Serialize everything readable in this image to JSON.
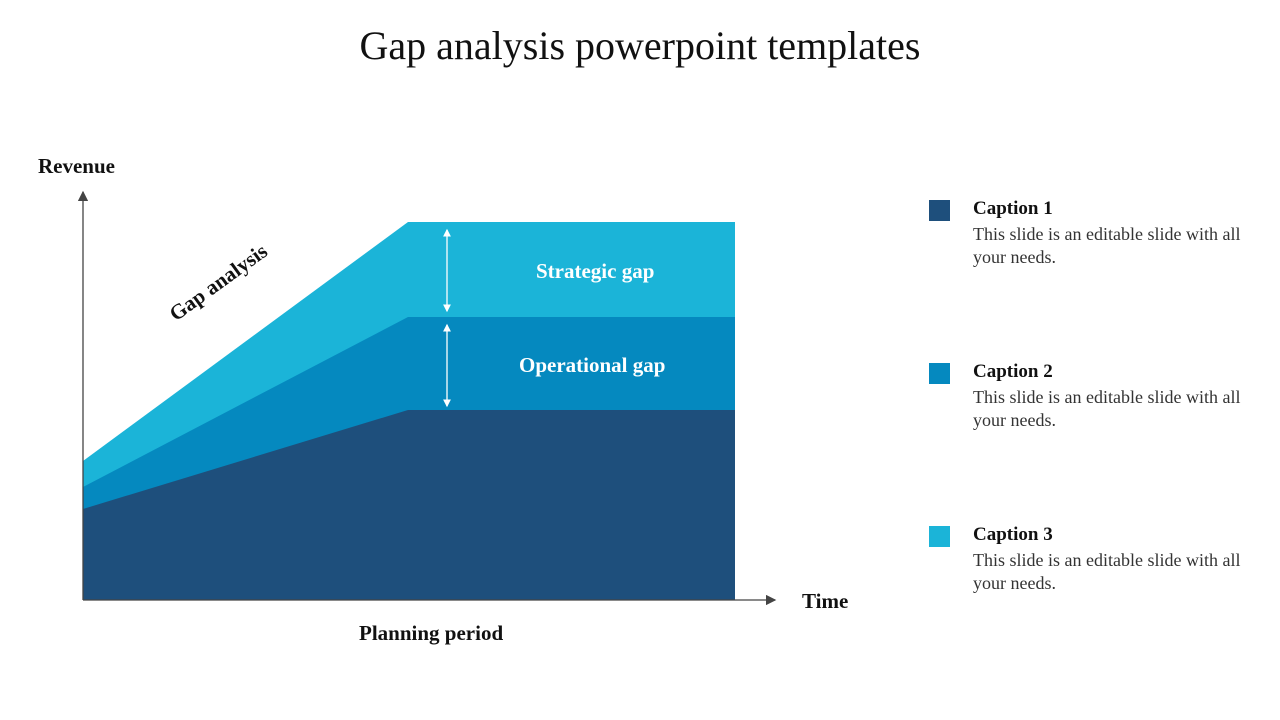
{
  "title": "Gap analysis powerpoint templates",
  "diagram": {
    "y_axis_label": "Revenue",
    "x_axis_label": "Time",
    "x_caption": "Planning period",
    "slope_label": "Gap analysis",
    "strategic_gap_label": "Strategic gap",
    "operational_gap_label": "Operational gap",
    "colors": {
      "strategic": "#1bb4d8",
      "operational": "#0589bf",
      "base": "#1e4f7c"
    }
  },
  "captions": [
    {
      "title": "Caption 1",
      "text": "This slide is an editable slide with all your needs.",
      "color": "#1e4f7c"
    },
    {
      "title": "Caption 2",
      "text": "This slide is an editable slide with all your needs.",
      "color": "#0589bf"
    },
    {
      "title": "Caption 3",
      "text": "This slide is an editable slide with all your needs.",
      "color": "#1bb4d8"
    }
  ]
}
